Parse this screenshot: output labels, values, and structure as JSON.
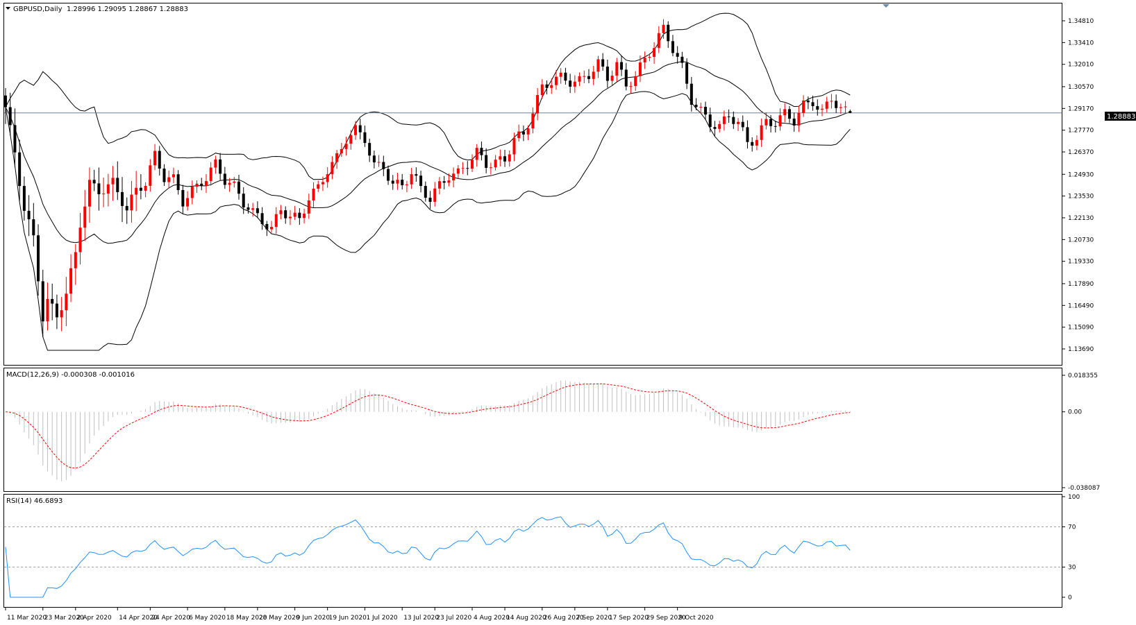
{
  "symbol_header": "GBPUSD,Daily",
  "ohlc": "1.28996 1.29095 1.28867 1.28883",
  "last_price_label": "1.28883",
  "price_axis_labels": [
    "1.34810",
    "1.33410",
    "1.32010",
    "1.30570",
    "1.29170",
    "1.27770",
    "1.26370",
    "1.24930",
    "1.23530",
    "1.22130",
    "1.20730",
    "1.19330",
    "1.17890",
    "1.16490",
    "1.15090",
    "1.13690"
  ],
  "macd_header": "MACD(12,26,9) -0.000308 -0.001016",
  "macd_axis_labels": [
    "0.018355",
    "0.00",
    "-0.038087"
  ],
  "rsi_header": "RSI(14) 46.6893",
  "rsi_axis_labels": [
    "100",
    "70",
    "30",
    "0"
  ],
  "date_labels": [
    "11 Mar 2020",
    "23 Mar 2020",
    "2 Apr 2020",
    "14 Apr 2020",
    "24 Apr 2020",
    "6 May 2020",
    "18 May 2020",
    "28 May 2020",
    "9 Jun 2020",
    "19 Jun 2020",
    "1 Jul 2020",
    "13 Jul 2020",
    "23 Jul 2020",
    "4 Aug 2020",
    "14 Aug 2020",
    "26 Aug 2020",
    "7 Sep 2020",
    "17 Sep 2020",
    "29 Sep 2020",
    "9 Oct 2020"
  ],
  "colors": {
    "bull": "#ff0000",
    "bear": "#000000",
    "bands": "#000000",
    "macd_hist": "#c0c0c0",
    "macd_signal": "#ff0000",
    "rsi": "#1e90ff",
    "grid_level": "#a0a0a0",
    "price_line": "#708090"
  },
  "chart_data": {
    "type": "candlestick",
    "instrument": "GBPUSD",
    "timeframe": "Daily",
    "price_range": [
      1.1369,
      1.3535
    ],
    "anchors_close": [
      [
        0,
        1.295
      ],
      [
        2,
        1.265
      ],
      [
        4,
        1.23
      ],
      [
        6,
        1.21
      ],
      [
        8,
        1.16
      ],
      [
        9,
        1.17
      ],
      [
        11,
        1.16
      ],
      [
        13,
        1.175
      ],
      [
        15,
        1.2
      ],
      [
        16,
        1.22
      ],
      [
        18,
        1.245
      ],
      [
        20,
        1.24
      ],
      [
        23,
        1.245
      ],
      [
        26,
        1.228
      ],
      [
        28,
        1.24
      ],
      [
        30,
        1.245
      ],
      [
        32,
        1.262
      ],
      [
        34,
        1.248
      ],
      [
        36,
        1.246
      ],
      [
        38,
        1.232
      ],
      [
        40,
        1.238
      ],
      [
        43,
        1.247
      ],
      [
        45,
        1.255
      ],
      [
        47,
        1.245
      ],
      [
        49,
        1.24
      ],
      [
        51,
        1.23
      ],
      [
        53,
        1.223
      ],
      [
        55,
        1.218
      ],
      [
        57,
        1.212
      ],
      [
        59,
        1.225
      ],
      [
        61,
        1.22
      ],
      [
        63,
        1.218
      ],
      [
        65,
        1.232
      ],
      [
        67,
        1.238
      ],
      [
        69,
        1.25
      ],
      [
        71,
        1.257
      ],
      [
        73,
        1.27
      ],
      [
        75,
        1.275
      ],
      [
        77,
        1.27
      ],
      [
        79,
        1.252
      ],
      [
        81,
        1.252
      ],
      [
        83,
        1.24
      ],
      [
        85,
        1.24
      ],
      [
        87,
        1.248
      ],
      [
        89,
        1.238
      ],
      [
        91,
        1.232
      ],
      [
        93,
        1.24
      ],
      [
        95,
        1.247
      ],
      [
        97,
        1.248
      ],
      [
        99,
        1.255
      ],
      [
        101,
        1.262
      ],
      [
        103,
        1.255
      ],
      [
        105,
        1.256
      ],
      [
        107,
        1.258
      ],
      [
        109,
        1.272
      ],
      [
        111,
        1.274
      ],
      [
        113,
        1.29
      ],
      [
        115,
        1.305
      ],
      [
        117,
        1.31
      ],
      [
        119,
        1.312
      ],
      [
        121,
        1.31
      ],
      [
        123,
        1.31
      ],
      [
        125,
        1.315
      ],
      [
        127,
        1.322
      ],
      [
        129,
        1.313
      ],
      [
        131,
        1.322
      ],
      [
        133,
        1.308
      ],
      [
        135,
        1.315
      ],
      [
        137,
        1.325
      ],
      [
        139,
        1.335
      ],
      [
        141,
        1.345
      ],
      [
        143,
        1.333
      ],
      [
        145,
        1.32
      ],
      [
        147,
        1.3
      ],
      [
        149,
        1.292
      ],
      [
        151,
        1.285
      ],
      [
        153,
        1.282
      ],
      [
        155,
        1.29
      ],
      [
        157,
        1.285
      ],
      [
        159,
        1.272
      ],
      [
        161,
        1.275
      ],
      [
        163,
        1.285
      ],
      [
        165,
        1.285
      ],
      [
        167,
        1.29
      ],
      [
        169,
        1.286
      ],
      [
        171,
        1.295
      ],
      [
        173,
        1.298
      ],
      [
        175,
        1.29
      ],
      [
        177,
        1.3
      ],
      [
        179,
        1.292
      ],
      [
        181,
        1.289
      ]
    ],
    "macd": {
      "last_main": -0.000308,
      "last_signal": -0.001016,
      "range": [
        -0.038087,
        0.018355
      ]
    },
    "rsi": {
      "period": 14,
      "last": 46.6893,
      "levels": [
        30,
        70
      ],
      "range": [
        0,
        100
      ]
    },
    "x_tick_labels": [
      "11 Mar 2020",
      "23 Mar 2020",
      "2 Apr 2020",
      "14 Apr 2020",
      "24 Apr 2020",
      "6 May 2020",
      "18 May 2020",
      "28 May 2020",
      "9 Jun 2020",
      "19 Jun 2020",
      "1 Jul 2020",
      "13 Jul 2020",
      "23 Jul 2020",
      "4 Aug 2020",
      "14 Aug 2020",
      "26 Aug 2020",
      "7 Sep 2020",
      "17 Sep 2020",
      "29 Sep 2020",
      "9 Oct 2020"
    ]
  }
}
